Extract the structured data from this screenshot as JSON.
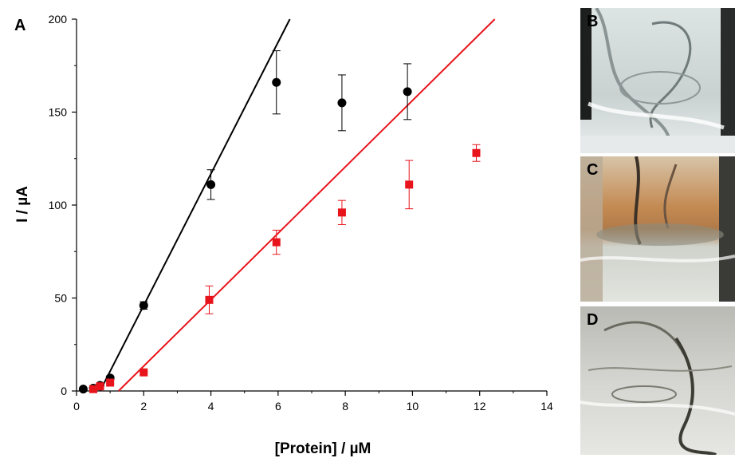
{
  "chart_data": {
    "type": "scatter",
    "panel_label": "A",
    "xlabel": "[Protein] / µM",
    "ylabel": "I / µA",
    "xlim": [
      0,
      14
    ],
    "ylim": [
      0,
      200
    ],
    "xticks": [
      0,
      2,
      4,
      6,
      8,
      10,
      12,
      14
    ],
    "yticks": [
      0,
      50,
      100,
      150,
      200
    ],
    "grid": false,
    "series": [
      {
        "color": "#000000",
        "marker": "circle",
        "points": [
          {
            "x": 0.2,
            "y": 1,
            "err": 0
          },
          {
            "x": 0.5,
            "y": 1.5,
            "err": 0
          },
          {
            "x": 0.7,
            "y": 3,
            "err": 0
          },
          {
            "x": 1.0,
            "y": 7,
            "err": 1
          },
          {
            "x": 2.0,
            "y": 46,
            "err": 2
          },
          {
            "x": 4.0,
            "y": 111,
            "err": 8
          },
          {
            "x": 5.95,
            "y": 166,
            "err": 17
          },
          {
            "x": 7.9,
            "y": 155,
            "err": 15
          },
          {
            "x": 9.85,
            "y": 161,
            "err": 15
          }
        ],
        "fit_line": {
          "x": [
            0.7,
            6.35
          ],
          "y": [
            0,
            200
          ]
        }
      },
      {
        "color": "#e8141c",
        "marker": "square",
        "points": [
          {
            "x": 0.5,
            "y": 1,
            "err": 0
          },
          {
            "x": 0.7,
            "y": 2.5,
            "err": 0
          },
          {
            "x": 1.0,
            "y": 4.5,
            "err": 0.5
          },
          {
            "x": 2.0,
            "y": 10,
            "err": 0.5
          },
          {
            "x": 3.95,
            "y": 49,
            "err": 7.5
          },
          {
            "x": 5.95,
            "y": 80,
            "err": 6.5
          },
          {
            "x": 7.9,
            "y": 96,
            "err": 6.5
          },
          {
            "x": 9.9,
            "y": 111,
            "err": 13
          },
          {
            "x": 11.9,
            "y": 128,
            "err": 4.5
          }
        ],
        "fit_line": {
          "x": [
            1.25,
            12.45
          ],
          "y": [
            0,
            200
          ]
        }
      }
    ]
  },
  "photos": [
    {
      "label": "B",
      "description_colors": [
        "#e8ecec",
        "#3a3f3f"
      ]
    },
    {
      "label": "C",
      "description_colors": [
        "#c88c55",
        "#d9d9d3"
      ]
    },
    {
      "label": "D",
      "description_colors": [
        "#cfd0cc",
        "#5a5a52"
      ]
    }
  ]
}
